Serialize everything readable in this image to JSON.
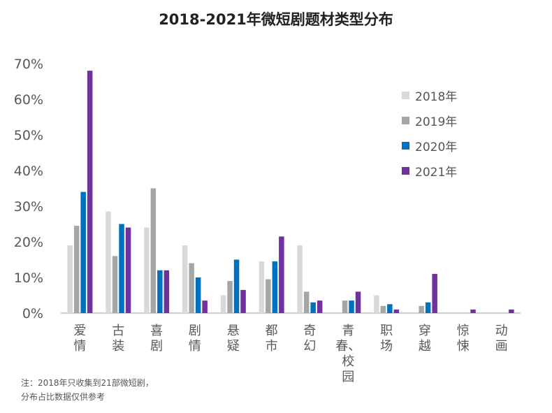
{
  "chart_data": {
    "type": "bar",
    "title": "2018-2021年微短剧题材类型分布",
    "categories": [
      "爱情",
      "古装",
      "喜剧",
      "剧情",
      "悬疑",
      "都市",
      "奇幻",
      "青春、校园",
      "职场",
      "穿越",
      "惊悚",
      "动画"
    ],
    "category_label_lines": [
      [
        "爱",
        "情"
      ],
      [
        "古",
        "装"
      ],
      [
        "喜",
        "剧"
      ],
      [
        "剧",
        "情"
      ],
      [
        "悬",
        "疑"
      ],
      [
        "都",
        "市"
      ],
      [
        "奇",
        "幻"
      ],
      [
        "青",
        "春、",
        "校",
        "园"
      ],
      [
        "职",
        "场"
      ],
      [
        "穿",
        "越"
      ],
      [
        "惊",
        "悚"
      ],
      [
        "动",
        "画"
      ]
    ],
    "series": [
      {
        "name": "2018年",
        "color": "#d9d9d9",
        "values": [
          19,
          28.5,
          24,
          19,
          5,
          14.5,
          19,
          0,
          5,
          0,
          0,
          0
        ]
      },
      {
        "name": "2019年",
        "color": "#a6a6a6",
        "values": [
          24.5,
          16,
          35,
          14,
          9,
          9.5,
          6,
          3.5,
          2,
          2,
          0,
          0
        ]
      },
      {
        "name": "2020年",
        "color": "#0070c0",
        "values": [
          34,
          25,
          12,
          10,
          15,
          14.5,
          3,
          3.5,
          2.5,
          3,
          0,
          0
        ]
      },
      {
        "name": "2021年",
        "color": "#7030a0",
        "values": [
          68,
          24,
          12,
          3.5,
          6.5,
          21.5,
          3.5,
          6,
          1,
          11,
          1,
          1
        ]
      }
    ],
    "ylim": [
      0,
      70
    ],
    "yticks": [
      "0%",
      "10%",
      "20%",
      "30%",
      "40%",
      "50%",
      "60%",
      "70%"
    ],
    "grid": false,
    "legend_position": "top-right"
  },
  "note": {
    "line1": "注：2018年只收集到21部微短剧，",
    "line2": "分布占比数据仅供参考"
  }
}
